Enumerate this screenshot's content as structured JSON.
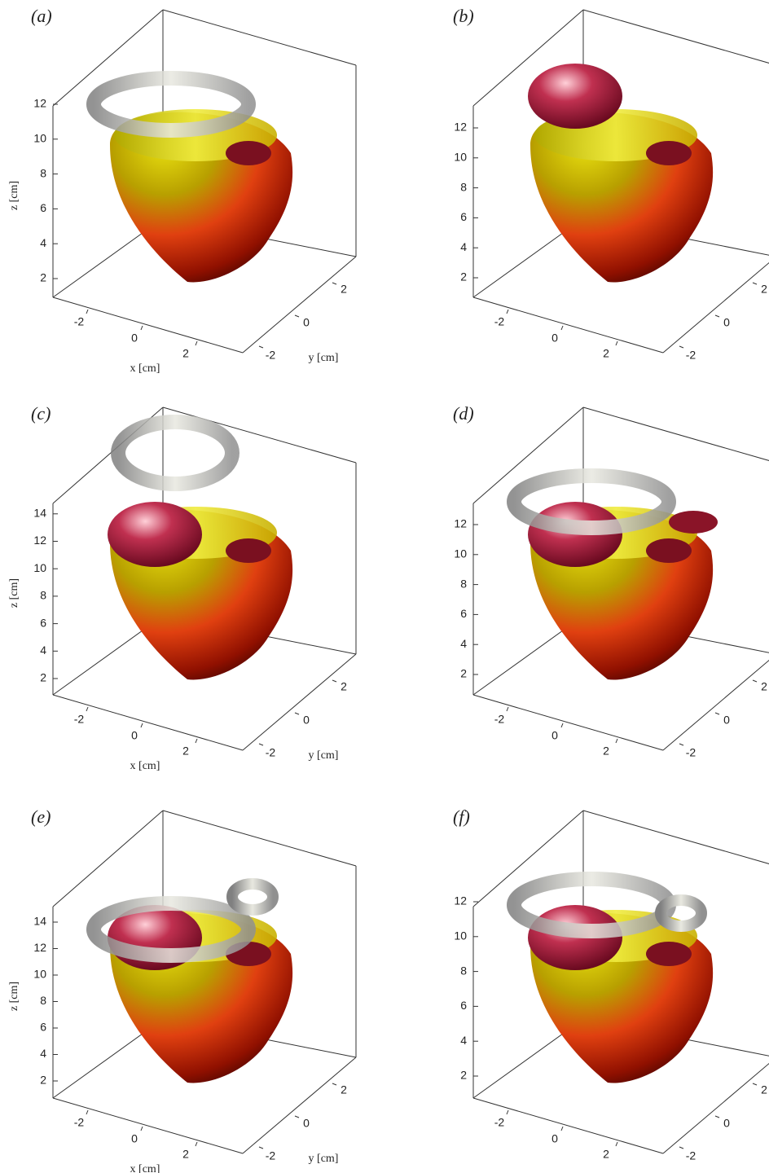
{
  "panels": [
    {
      "label": "(a)",
      "zticks": [
        2,
        4,
        6,
        8,
        10,
        12
      ],
      "xticks": [
        -2,
        0,
        2
      ],
      "yticks": [
        -2,
        0,
        2
      ],
      "xlabel": "x [cm]",
      "ylabel": "y [cm]",
      "zlabel": "z [cm]"
    },
    {
      "label": "(b)",
      "zticks": [
        2,
        4,
        6,
        8,
        10,
        12
      ],
      "xticks": [
        -2,
        0,
        2
      ],
      "yticks": [
        -2,
        0,
        2
      ]
    },
    {
      "label": "(c)",
      "zticks": [
        2,
        4,
        6,
        8,
        10,
        12,
        14
      ],
      "xticks": [
        -2,
        0,
        2
      ],
      "yticks": [
        -2,
        0,
        2
      ],
      "xlabel": "x [cm]",
      "ylabel": "y [cm]",
      "zlabel": "z [cm]"
    },
    {
      "label": "(d)",
      "zticks": [
        2,
        4,
        6,
        8,
        10,
        12
      ],
      "xticks": [
        -2,
        0,
        2
      ],
      "yticks": [
        -2,
        0,
        2
      ]
    },
    {
      "label": "(e)",
      "zticks": [
        2,
        4,
        6,
        8,
        10,
        12,
        14
      ],
      "xticks": [
        -2,
        0,
        2
      ],
      "yticks": [
        -2,
        0,
        2
      ],
      "xlabel": "x [cm]",
      "ylabel": "y [cm]",
      "zlabel": "z [cm]"
    },
    {
      "label": "(f)",
      "zticks": [
        2,
        4,
        6,
        8,
        10,
        12
      ],
      "xticks": [
        -2,
        0,
        2
      ],
      "yticks": [
        -2,
        0,
        2
      ]
    }
  ]
}
